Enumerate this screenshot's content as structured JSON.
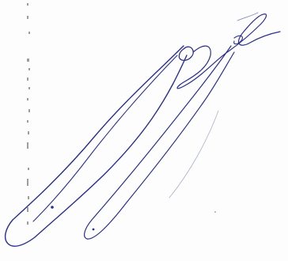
{
  "document": {
    "content_type": "handwritten-signature",
    "ink_color": "#2a2f8f",
    "faint_ink_color": "#8a8fb8",
    "background": "#fdfdfd",
    "edge_marks_color": "#6b6b6b"
  }
}
